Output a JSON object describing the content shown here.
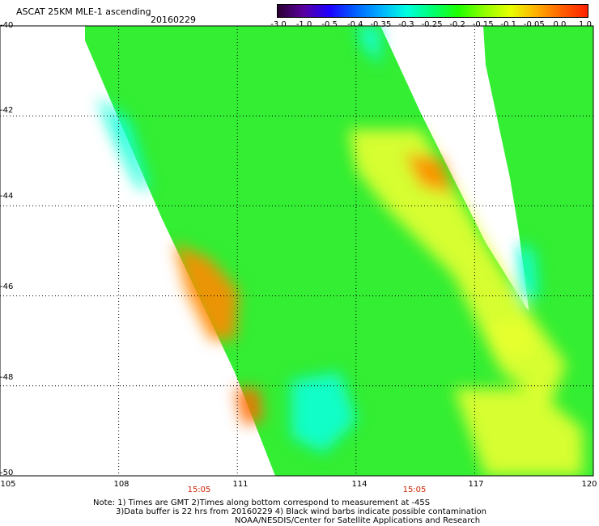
{
  "header": {
    "title": "ASCAT 25KM MLE-1 ascending",
    "date": "20160229"
  },
  "colorbar": {
    "labels": [
      "-3.0",
      "-1.0",
      "-0.5",
      "-0.4",
      "-0.35",
      "-0.3",
      "-0.25",
      "-0.2",
      "-0.15",
      "-0.1",
      "-0.05",
      "0.0",
      "1.0"
    ],
    "colors": [
      "#2a0030",
      "#5a00a0",
      "#2000ff",
      "#0060ff",
      "#00b0ff",
      "#00ffe0",
      "#00ff70",
      "#20ff00",
      "#90ff00",
      "#e8ff00",
      "#ffb000",
      "#ff6000",
      "#ff2000"
    ]
  },
  "map": {
    "lat_labels": [
      "-40",
      "-42",
      "-44",
      "-46",
      "-48",
      "-50"
    ],
    "lon_labels": [
      "105",
      "108",
      "111",
      "114",
      "117",
      "120"
    ],
    "time_labels": [
      "15:05",
      "15:05"
    ],
    "swath_fill": "#33ee33",
    "regions": [
      {
        "name": "low-mle-west-edge",
        "color": "#10ffd8"
      },
      {
        "name": "moderate-east-band",
        "color": "#e8ff30"
      },
      {
        "name": "high-mle-west-patch",
        "color": "#ff8a00"
      },
      {
        "name": "high-mle-south-patch",
        "color": "#ff6a00"
      }
    ]
  },
  "notes": {
    "line1": "Note: 1) Times are GMT 2)Times along bottom correspond to measurement at -45S",
    "line2": "3)Data buffer is 22 hrs from 20160229 4) Black wind barbs indicate possible contamination",
    "line3": "NOAA/NESDIS/Center for Satellite Applications and Research"
  }
}
